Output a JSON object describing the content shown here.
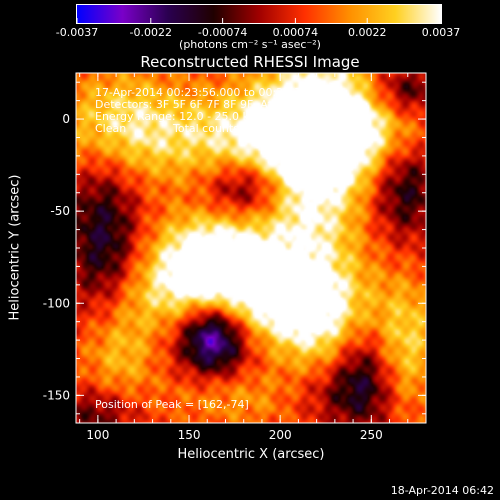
{
  "chart_data": {
    "type": "heatmap",
    "title": "Reconstructed RHESSI Image",
    "xlabel": "Heliocentric X (arcsec)",
    "ylabel": "Heliocentric Y (arcsec)",
    "xlim": [
      88,
      280
    ],
    "ylim": [
      -165,
      25
    ],
    "x_ticks": [
      100,
      150,
      200,
      250
    ],
    "y_ticks": [
      0,
      -50,
      -100,
      -150
    ],
    "colorbar": {
      "label": "(photons cm⁻² s⁻¹ asec⁻²)",
      "range": [
        -0.0037,
        0.0037
      ],
      "tick_values": [
        -0.0037,
        -0.0022,
        -0.00074,
        0.00074,
        0.0022,
        0.0037
      ],
      "tick_labels": [
        "-0.0037",
        "-0.0022",
        "-0.00074",
        "0.00074",
        "0.0022",
        "0.0037"
      ],
      "colors": [
        "#0000ff",
        "#7a00c8",
        "#2a0050",
        "#200000",
        "#a00000",
        "#ff3000",
        "#ff9000",
        "#ffd020",
        "#ffffff"
      ]
    },
    "annotations": {
      "time_range": "17-Apr-2014 00:23:56.000 to 00:27:30.000",
      "detectors": "Detectors: 3F 5F 6F 7F 8F 9F, Att 0",
      "energy": "Energy Range: 12.0 - 25.0 keV",
      "method": "Clean",
      "counts": "Total counts: 8.19E+03",
      "peak": "Position of Peak = [162,-74]"
    },
    "peak": {
      "x": 162,
      "y": -74
    },
    "features": [
      {
        "kind": "peak",
        "x": 162,
        "y": -74,
        "amplitude": 0.0036,
        "sigma_x": 22,
        "sigma_y": 16
      },
      {
        "kind": "ridge",
        "x": 215,
        "y": -50,
        "amplitude": 0.0026,
        "sigma_x": 22,
        "sigma_y": 55
      },
      {
        "kind": "ridge",
        "x": 190,
        "y": -10,
        "amplitude": 0.0024,
        "sigma_x": 60,
        "sigma_y": 18
      },
      {
        "kind": "ridge",
        "x": 230,
        "y": 0,
        "amplitude": 0.0026,
        "sigma_x": 25,
        "sigma_y": 22
      },
      {
        "kind": "ridge",
        "x": 210,
        "y": -110,
        "amplitude": 0.0025,
        "sigma_x": 35,
        "sigma_y": 18
      },
      {
        "kind": "ridge",
        "x": 160,
        "y": -95,
        "amplitude": 0.0022,
        "sigma_x": 40,
        "sigma_y": 14
      },
      {
        "kind": "blob",
        "x": 110,
        "y": -125,
        "amplitude": 0.0022,
        "sigma_x": 15,
        "sigma_y": 18
      },
      {
        "kind": "blob",
        "x": 110,
        "y": 0,
        "amplitude": 0.0018,
        "sigma_x": 22,
        "sigma_y": 20
      },
      {
        "kind": "blob",
        "x": 180,
        "y": -150,
        "amplitude": 0.0014,
        "sigma_x": 30,
        "sigma_y": 12
      },
      {
        "kind": "blob",
        "x": 270,
        "y": -125,
        "amplitude": 0.0016,
        "sigma_x": 12,
        "sigma_y": 25
      },
      {
        "kind": "trough",
        "x": 163,
        "y": -117,
        "amplitude": -0.0036,
        "sigma_x": 12,
        "sigma_y": 14
      },
      {
        "kind": "trough",
        "x": 180,
        "y": -120,
        "amplitude": -0.0016,
        "sigma_x": 28,
        "sigma_y": 20
      },
      {
        "kind": "trough",
        "x": 183,
        "y": -37,
        "amplitude": -0.0026,
        "sigma_x": 16,
        "sigma_y": 12
      },
      {
        "kind": "trough",
        "x": 103,
        "y": -70,
        "amplitude": -0.0024,
        "sigma_x": 14,
        "sigma_y": 40
      },
      {
        "kind": "trough",
        "x": 268,
        "y": -35,
        "amplitude": -0.0024,
        "sigma_x": 14,
        "sigma_y": 20
      },
      {
        "kind": "trough",
        "x": 268,
        "y": 15,
        "amplitude": -0.0022,
        "sigma_x": 16,
        "sigma_y": 10
      },
      {
        "kind": "trough",
        "x": 245,
        "y": -135,
        "amplitude": -0.0022,
        "sigma_x": 12,
        "sigma_y": 22
      },
      {
        "kind": "trough",
        "x": 225,
        "y": -150,
        "amplitude": -0.0014,
        "sigma_x": 22,
        "sigma_y": 12
      },
      {
        "kind": "trough",
        "x": 100,
        "y": -160,
        "amplitude": -0.0014,
        "sigma_x": 15,
        "sigma_y": 10
      }
    ]
  },
  "footer": {
    "timestamp": "18-Apr-2014 06:42"
  }
}
